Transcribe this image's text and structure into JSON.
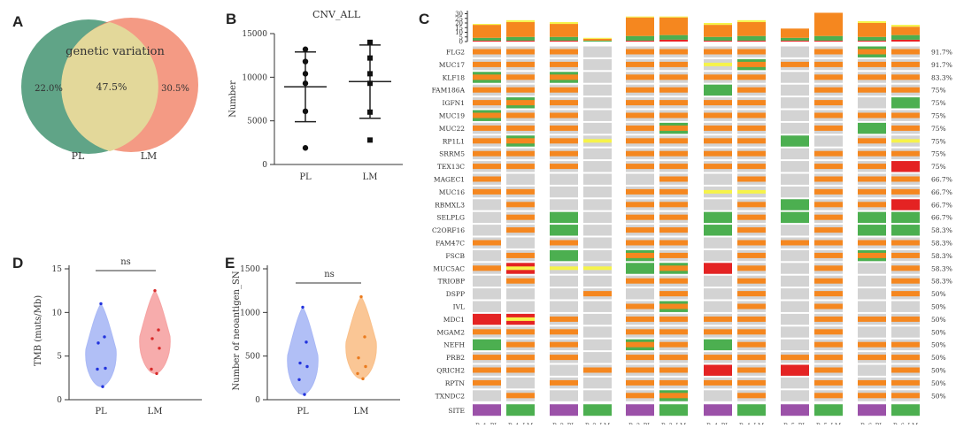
{
  "panels": {
    "A": {
      "letter": "A"
    },
    "B": {
      "letter": "B"
    },
    "C": {
      "letter": "C"
    },
    "D": {
      "letter": "D"
    },
    "E": {
      "letter": "E"
    }
  },
  "colors": {
    "venn_left": "#4f9a7a",
    "venn_right": "#f2886e",
    "venn_overlap": "#e3d89a",
    "orange": "#f5871f",
    "green": "#4caf50",
    "yellow": "#f6f34a",
    "red": "#e42323",
    "grey": "#d3d3d3",
    "purple": "#9b51a8",
    "site_green": "#4caf50",
    "pl_violin": "#a9b8f5",
    "lm_violin": "#f6a3a3",
    "lm_violin_e": "#f9c08a"
  },
  "chart_data": [
    {
      "type": "venn",
      "title": "genetic variation",
      "sets": [
        "PL",
        "LM"
      ],
      "values": {
        "PL_only": "22.0%",
        "both": "47.5%",
        "LM_only": "30.5%"
      }
    },
    {
      "type": "scatter",
      "title": "CNV_ALL",
      "ylabel": "Number",
      "categories": [
        "PL",
        "LM"
      ],
      "ylim": [
        0,
        15000
      ],
      "yticks": [
        "0",
        "5000",
        "10000",
        "15000"
      ],
      "series": [
        {
          "name": "PL",
          "values": [
            13200,
            11800,
            10400,
            9300,
            6100,
            1900
          ],
          "mean": 8900,
          "sd_low": 4900,
          "sd_high": 12900
        },
        {
          "name": "LM",
          "values": [
            14000,
            12200,
            10400,
            9300,
            6000,
            2800
          ],
          "mean": 9500,
          "sd_low": 5300,
          "sd_high": 13700
        }
      ]
    },
    {
      "type": "heatmap",
      "genes": [
        "FLG2",
        "MUC17",
        "KLF18",
        "FAM186A",
        "IGFN1",
        "MUC19",
        "MUC22",
        "RP1L1",
        "SRRM5",
        "TEX13C",
        "MAGEC1",
        "MUC16",
        "RBMXL3",
        "SELPLG",
        "C2ORF16",
        "FAM47C",
        "FSCB",
        "MUC5AC",
        "TRIOBP",
        "DSPP",
        "IVL",
        "MDC1",
        "MGAM2",
        "NEFH",
        "PRB2",
        "QRICH2",
        "RPTN",
        "TXNDC2"
      ],
      "percents": [
        "91.7%",
        "91.7%",
        "83.3%",
        "75%",
        "75%",
        "75%",
        "75%",
        "75%",
        "75%",
        "75%",
        "66.7%",
        "66.7%",
        "66.7%",
        "66.7%",
        "58.3%",
        "58.3%",
        "58.3%",
        "58.3%",
        "58.3%",
        "50%",
        "50%",
        "50%",
        "50%",
        "50%",
        "50%",
        "50%",
        "50%",
        "50%"
      ],
      "samples": [
        "Pa1_PL",
        "Pa1_LM",
        "Pa2_PL",
        "Pa2_LM",
        "Pa3_PL",
        "Pa3_LM",
        "Pa4_PL",
        "Pa4_LM",
        "Pa5_PL",
        "Pa5_LM",
        "Pa6_PL",
        "Pa6_LM"
      ],
      "site_label": "SITE",
      "site": [
        "PL",
        "LM",
        "PL",
        "LM",
        "PL",
        "LM",
        "PL",
        "LM",
        "PL",
        "LM",
        "PL",
        "LM"
      ],
      "top_ticks": [
        "30",
        "25",
        "20",
        "15",
        "10",
        "5",
        "0"
      ],
      "tmb_bars": [
        {
          "o": 14,
          "g": 3,
          "y": 1,
          "r": 1
        },
        {
          "o": 16,
          "g": 4,
          "y": 2,
          "r": 1
        },
        {
          "o": 14,
          "g": 4,
          "y": 2,
          "r": 1
        },
        {
          "o": 2,
          "g": 1,
          "y": 1,
          "r": 0
        },
        {
          "o": 20,
          "g": 5,
          "y": 1,
          "r": 1
        },
        {
          "o": 19,
          "g": 5,
          "y": 1,
          "r": 2
        },
        {
          "o": 13,
          "g": 4,
          "y": 2,
          "r": 1
        },
        {
          "o": 15,
          "g": 5,
          "y": 2,
          "r": 1
        },
        {
          "o": 10,
          "g": 3,
          "y": 0,
          "r": 1
        },
        {
          "o": 25,
          "g": 5,
          "y": 0,
          "r": 1
        },
        {
          "o": 15,
          "g": 4,
          "y": 2,
          "r": 1
        },
        {
          "o": 9,
          "g": 5,
          "y": 2,
          "r": 2
        }
      ],
      "matrix": [
        [
          "O",
          "O",
          "O",
          "G",
          "O",
          "O",
          "O",
          "O",
          "G",
          "O",
          "OG",
          "O"
        ],
        [
          "O",
          "O",
          "O",
          "G",
          "O",
          "O",
          "Y",
          "OG",
          "O",
          "O",
          "O",
          "O"
        ],
        [
          "OG",
          "O",
          "OG",
          "G",
          "O",
          "O",
          "O",
          "O",
          "G",
          "O",
          "O",
          "O"
        ],
        [
          "O",
          "O",
          "O",
          "G",
          "O",
          "O",
          "G",
          "O",
          "G",
          "O",
          "O",
          "O"
        ],
        [
          "O",
          "OG",
          "O",
          "G",
          "O",
          "O",
          "O",
          "O",
          "G",
          "O",
          "G",
          "G"
        ],
        [
          "OG",
          "O",
          "O",
          "G",
          "O",
          "O",
          "O",
          "O",
          "G",
          "O",
          "O",
          "O"
        ],
        [
          "O",
          "O",
          "O",
          "G",
          "O",
          "OG",
          "O",
          "O",
          "G",
          "O",
          "G",
          "O"
        ],
        [
          "O",
          "OG",
          "O",
          "Y",
          "O",
          "O",
          "O",
          "O",
          "G",
          "G",
          "O",
          "Y"
        ],
        [
          "O",
          "O",
          "O",
          "G",
          "O",
          "O",
          "O",
          "O",
          "G",
          "O",
          "O",
          "O"
        ],
        [
          "O",
          "O",
          "O",
          "G",
          "O",
          "O",
          "O",
          "O",
          "G",
          "O",
          "O",
          "R"
        ],
        [
          "O",
          "G",
          "G",
          "G",
          "G",
          "O",
          "G",
          "O",
          "G",
          "O",
          "O",
          "O"
        ],
        [
          "O",
          "O",
          "G",
          "G",
          "O",
          "O",
          "Y",
          "Y",
          "G",
          "O",
          "O",
          "O"
        ],
        [
          "G",
          "O",
          "G",
          "G",
          "O",
          "O",
          "G",
          "O",
          "G",
          "O",
          "O",
          "R"
        ],
        [
          "G",
          "O",
          "G",
          "G",
          "O",
          "O",
          "G",
          "O",
          "G",
          "O",
          "G",
          "G"
        ],
        [
          "G",
          "O",
          "G",
          "G",
          "O",
          "O",
          "G",
          "O",
          "G",
          "O",
          "Y",
          "G"
        ],
        [
          "O",
          "G",
          "O",
          "G",
          "O",
          "O",
          "G",
          "O",
          "O",
          "O",
          "O",
          "O"
        ],
        [
          "G",
          "O",
          "O",
          "G",
          "OG",
          "O",
          "G",
          "O",
          "G",
          "O",
          "OG",
          "O"
        ],
        [
          "O",
          "RY",
          "Y",
          "Y",
          "G",
          "OG",
          "R",
          "O",
          "G",
          "O",
          "G",
          "O"
        ],
        [
          "G",
          "O",
          "G",
          "G",
          "O",
          "O",
          "G",
          "O",
          "G",
          "O",
          "G",
          "O"
        ],
        [
          "G",
          "G",
          "G",
          "O",
          "G",
          "O",
          "G",
          "O",
          "G",
          "O",
          "G",
          "O"
        ],
        [
          "G",
          "G",
          "G",
          "G",
          "O",
          "OG",
          "G",
          "O",
          "G",
          "O",
          "G",
          "G"
        ],
        [
          "R",
          "RY",
          "O",
          "G",
          "O",
          "O",
          "O",
          "O",
          "G",
          "O",
          "O",
          "O"
        ],
        [
          "O",
          "O",
          "O",
          "G",
          "O",
          "O",
          "O",
          "O",
          "G",
          "O",
          "G",
          "G"
        ],
        [
          "G",
          "O",
          "O",
          "G",
          "OG",
          "O",
          "G",
          "O",
          "G",
          "O",
          "O",
          "O"
        ],
        [
          "O",
          "O",
          "O",
          "G",
          "O",
          "O",
          "O",
          "O",
          "O",
          "O",
          "O",
          "O"
        ],
        [
          "O",
          "O",
          "G",
          "O",
          "O",
          "O",
          "R",
          "O",
          "R",
          "O",
          "G",
          "O"
        ],
        [
          "O",
          "G",
          "O",
          "G",
          "O",
          "O",
          "O",
          "O",
          "G",
          "O",
          "O",
          "O"
        ],
        [
          "G",
          "O",
          "G",
          "G",
          "O",
          "OG",
          "G",
          "O",
          "G",
          "O",
          "O",
          "O"
        ]
      ]
    },
    {
      "type": "violin",
      "ylabel": "TMB (muts/Mb)",
      "categories": [
        "PL",
        "LM"
      ],
      "ylim": [
        0,
        15
      ],
      "yticks": [
        "0",
        "5",
        "10",
        "15"
      ],
      "sig": "ns",
      "series": [
        {
          "name": "PL",
          "values": [
            11.0,
            7.2,
            6.5,
            3.6,
            3.5,
            1.5
          ]
        },
        {
          "name": "LM",
          "values": [
            12.5,
            8.0,
            7.0,
            5.9,
            3.5,
            3.0
          ]
        }
      ]
    },
    {
      "type": "violin",
      "ylabel": "Number of neoantigen_SN",
      "categories": [
        "PL",
        "LM"
      ],
      "ylim": [
        0,
        1500
      ],
      "yticks": [
        "0",
        "500",
        "1000",
        "1500"
      ],
      "sig": "ns",
      "series": [
        {
          "name": "PL",
          "values": [
            1060,
            660,
            420,
            380,
            230,
            60
          ]
        },
        {
          "name": "LM",
          "values": [
            1180,
            720,
            480,
            380,
            300,
            240
          ]
        }
      ]
    }
  ]
}
